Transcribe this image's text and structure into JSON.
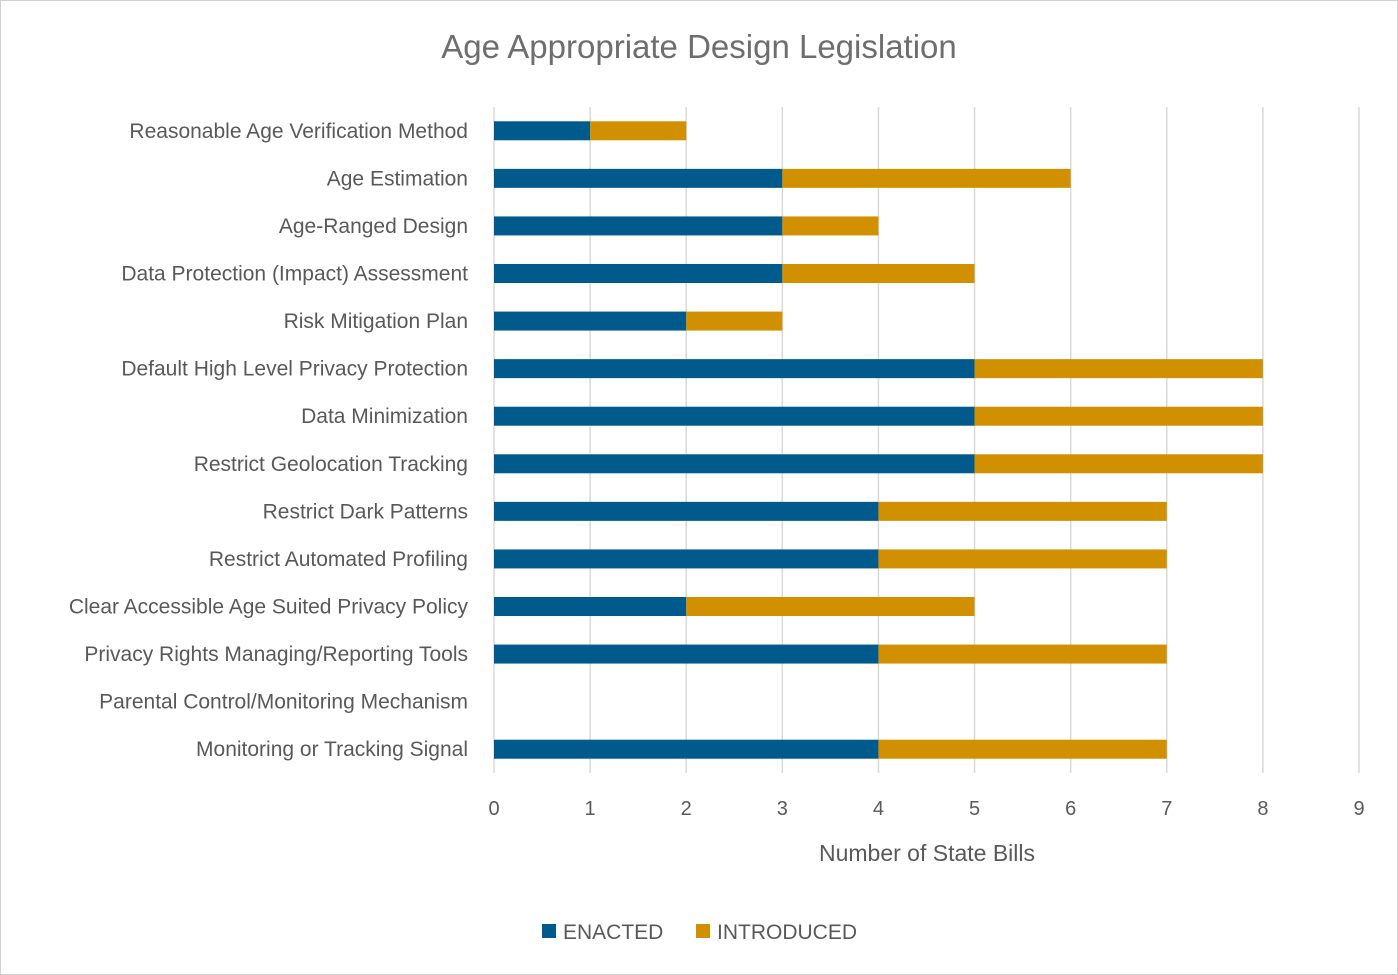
{
  "chart_data": {
    "type": "bar",
    "orientation": "horizontal",
    "stacked": true,
    "title": "Age Appropriate Design Legislation",
    "xlabel": "Number of State Bills",
    "ylabel": "",
    "xlim": [
      0,
      9
    ],
    "xticks": [
      0,
      1,
      2,
      3,
      4,
      5,
      6,
      7,
      8,
      9
    ],
    "grid": true,
    "legend_position": "bottom",
    "categories": [
      "Reasonable Age Verification Method",
      "Age Estimation",
      "Age-Ranged Design",
      "Data Protection (Impact) Assessment",
      "Risk Mitigation Plan",
      "Default High Level Privacy Protection",
      "Data Minimization",
      "Restrict Geolocation Tracking",
      "Restrict Dark Patterns",
      "Restrict Automated Profiling",
      "Clear Accessible Age Suited Privacy Policy",
      "Privacy Rights Managing/Reporting Tools",
      "Parental Control/Monitoring Mechanism",
      "Monitoring or Tracking Signal"
    ],
    "series": [
      {
        "name": "ENACTED",
        "color": "#005A8C",
        "values": [
          1,
          3,
          3,
          3,
          2,
          5,
          5,
          5,
          4,
          4,
          2,
          4,
          0,
          4
        ]
      },
      {
        "name": "INTRODUCED",
        "color": "#D09000",
        "values": [
          1,
          3,
          1,
          2,
          1,
          3,
          3,
          3,
          3,
          3,
          3,
          3,
          0,
          3
        ]
      }
    ]
  }
}
